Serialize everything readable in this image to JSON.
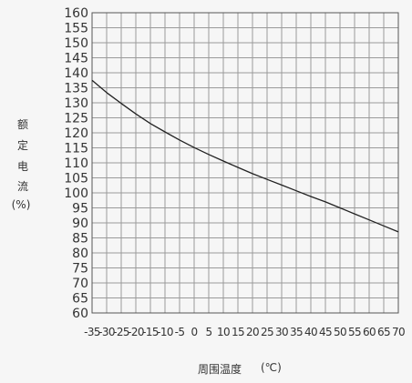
{
  "chart_data": {
    "type": "line",
    "title": "",
    "ylabel": "额定电流(%)",
    "ylabel_chars": [
      "额",
      "定",
      "电",
      "流",
      "(%)"
    ],
    "xlabel": "周围温度 (℃)",
    "xlabel_parts": {
      "text": "周围温度",
      "unit": "(℃)"
    },
    "xlim": [
      -35,
      70
    ],
    "ylim": [
      60,
      160
    ],
    "x_ticks": [
      -35,
      -30,
      -25,
      -20,
      -15,
      -10,
      -5,
      0,
      5,
      10,
      15,
      20,
      25,
      30,
      35,
      40,
      45,
      50,
      55,
      60,
      65,
      70
    ],
    "y_ticks": [
      60,
      65,
      70,
      75,
      80,
      85,
      90,
      95,
      100,
      105,
      110,
      115,
      120,
      125,
      130,
      135,
      140,
      145,
      150,
      155,
      160
    ],
    "grid": true,
    "series": [
      {
        "color": "#222222",
        "x": [
          -35,
          -30,
          -25,
          -20,
          -15,
          -10,
          -5,
          0,
          5,
          10,
          15,
          20,
          25,
          30,
          35,
          40,
          45,
          50,
          55,
          60,
          65,
          70
        ],
        "y": [
          137.5,
          133.4,
          129.8,
          126.3,
          123.1,
          120.3,
          117.6,
          115.1,
          112.8,
          110.6,
          108.5,
          106.4,
          104.5,
          102.6,
          100.7,
          98.8,
          97.0,
          95.0,
          93.0,
          91.0,
          89.0,
          87.0
        ]
      }
    ]
  },
  "colors": {
    "background": "#f6f6f6",
    "grid": "#9a9a9a",
    "axis": "#555555",
    "text": "#333333"
  }
}
